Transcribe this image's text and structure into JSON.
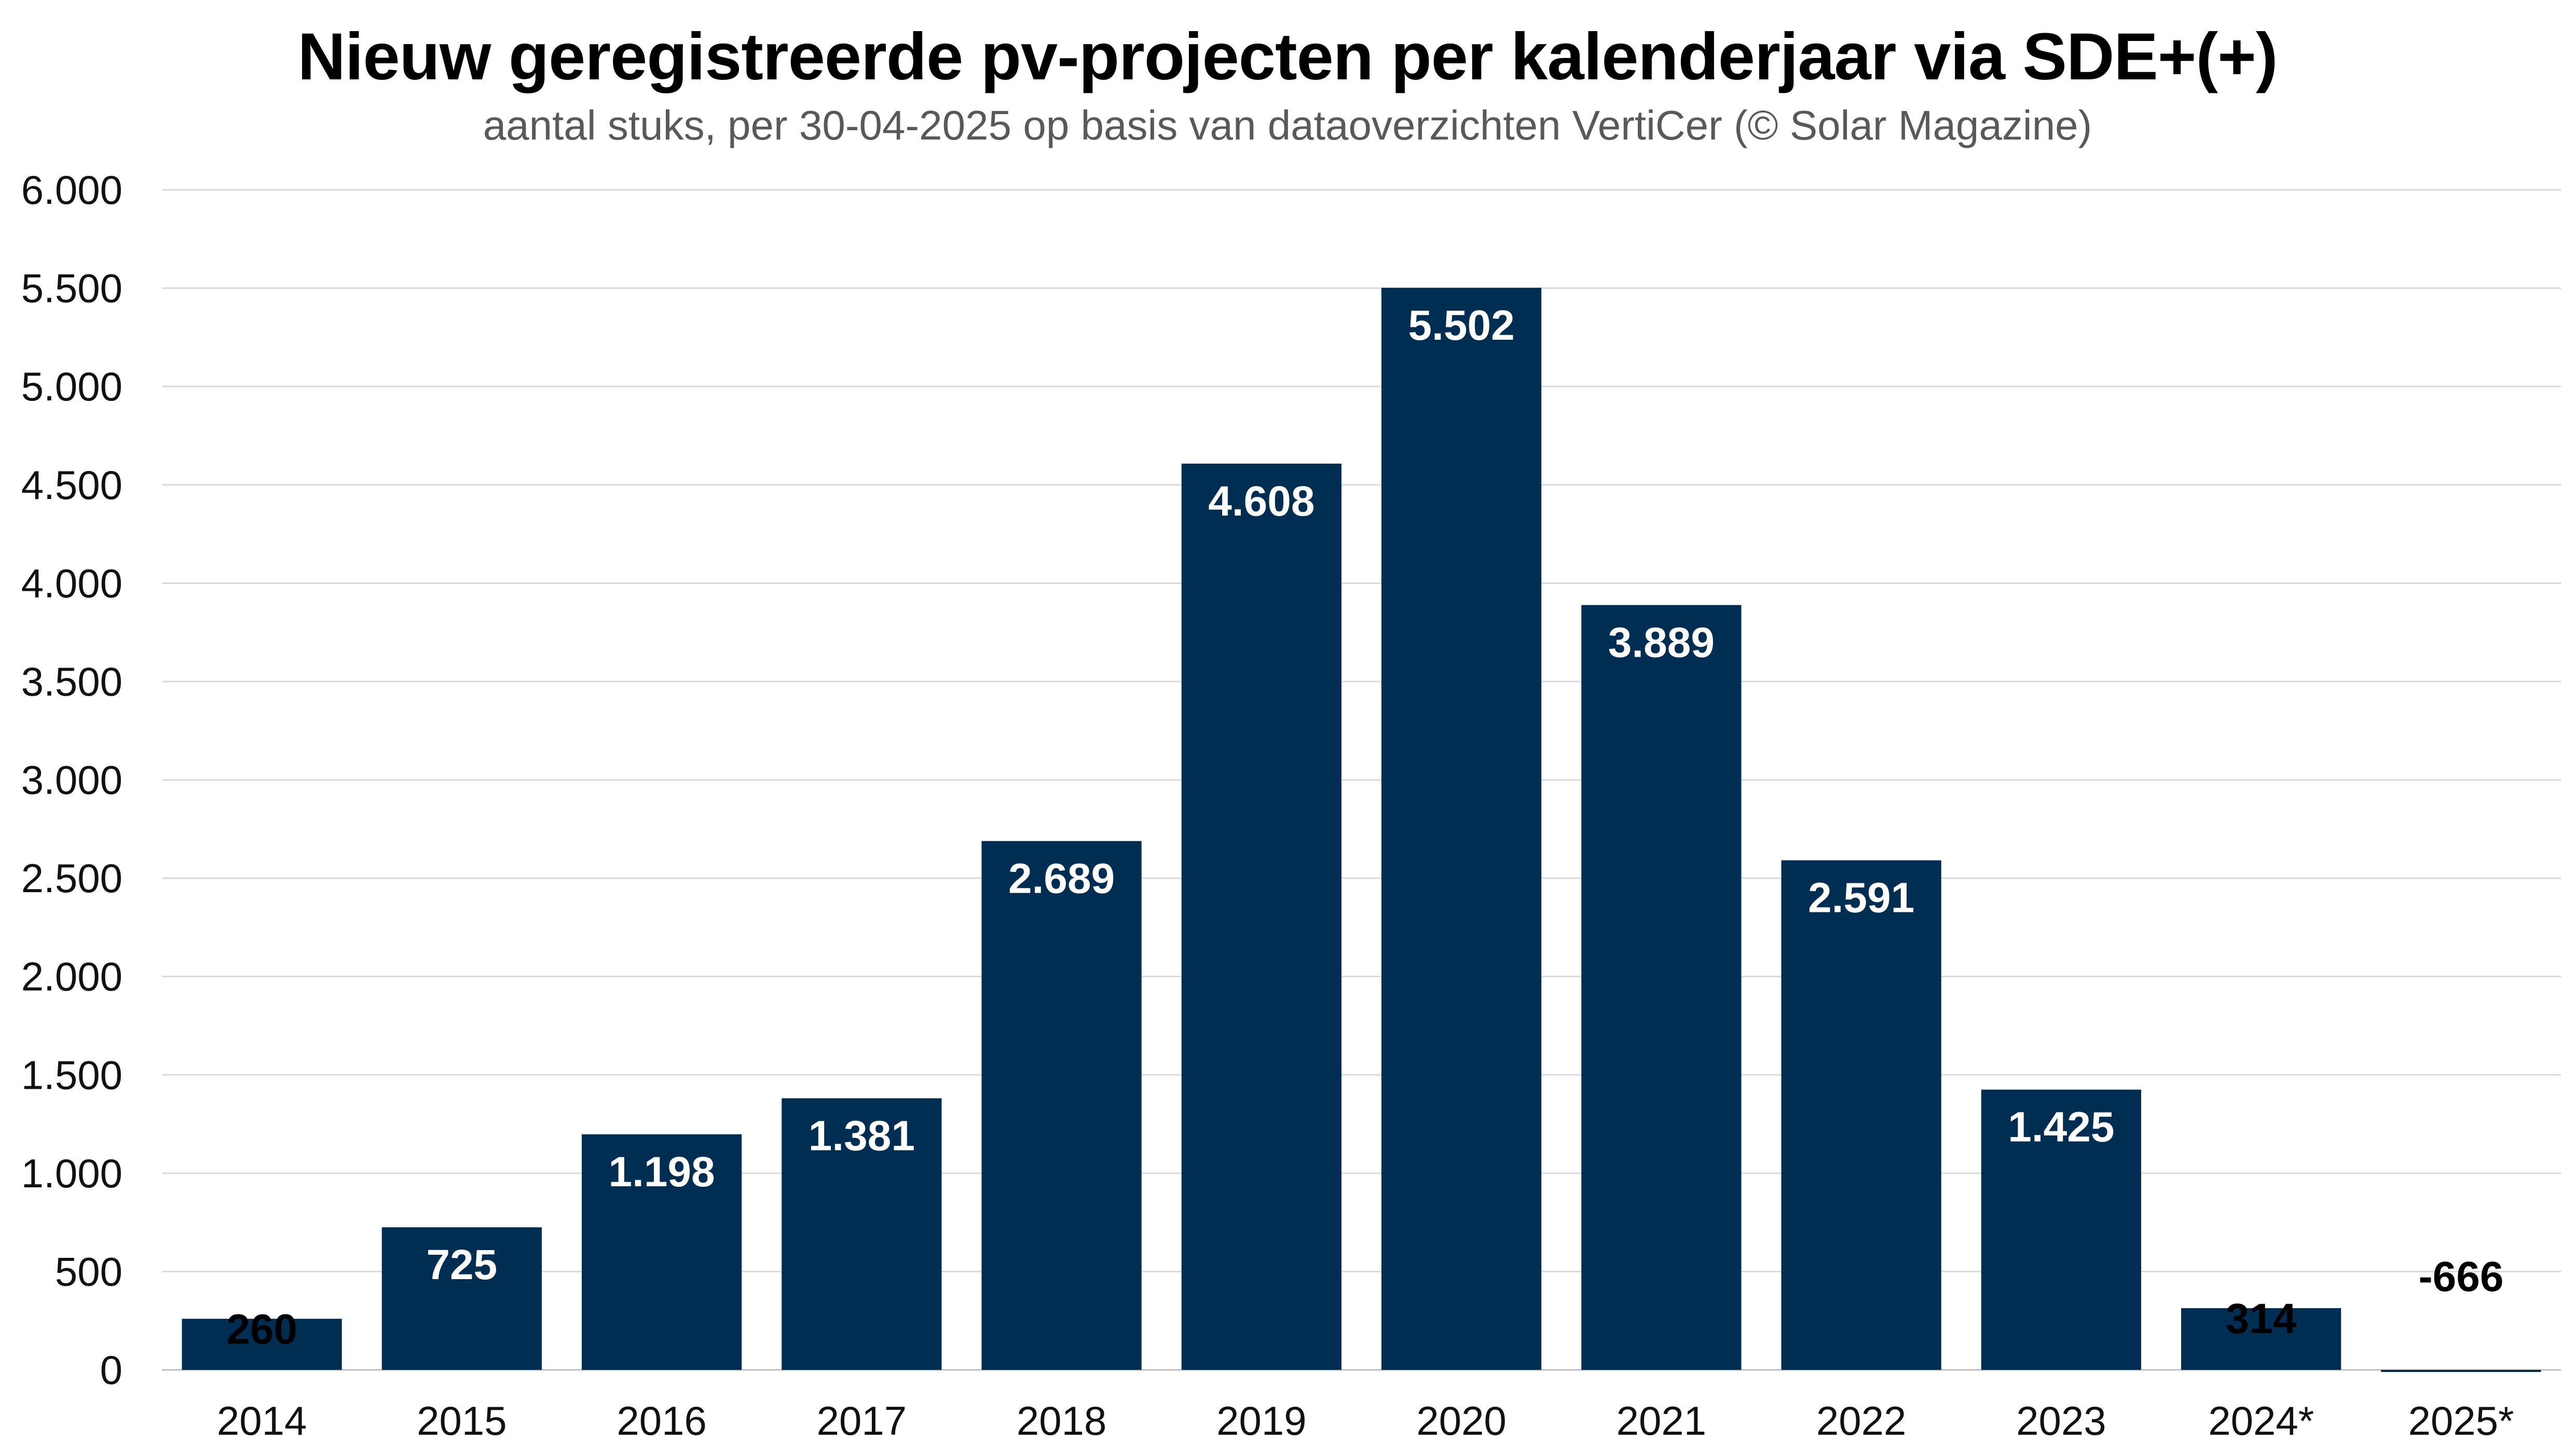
{
  "chart_data": {
    "type": "bar",
    "title": "Nieuw geregistreerde pv-projecten per kalenderjaar via SDE+(+)",
    "subtitle": "aantal stuks, per 30-04-2025 op basis van dataoverzichten VertiCer (© Solar Magazine)",
    "xlabel": "",
    "ylabel": "",
    "categories": [
      "2014",
      "2015",
      "2016",
      "2017",
      "2018",
      "2019",
      "2020",
      "2021",
      "2022",
      "2023",
      "2024*",
      "2025*"
    ],
    "values": [
      260,
      725,
      1198,
      1381,
      2689,
      4608,
      5502,
      3889,
      2591,
      1425,
      314,
      -666
    ],
    "data_labels": [
      "260",
      "725",
      "1.198",
      "1.381",
      "2.689",
      "4.608",
      "5.502",
      "3.889",
      "2.591",
      "1.425",
      "314",
      "-666"
    ],
    "ylim": [
      0,
      6000
    ],
    "yticks": [
      0,
      500,
      1000,
      1500,
      2000,
      2500,
      3000,
      3500,
      4000,
      4500,
      5000,
      5500,
      6000
    ],
    "ytick_labels": [
      "0",
      "500",
      "1.000",
      "1.500",
      "2.000",
      "2.500",
      "3.000",
      "3.500",
      "4.000",
      "4.500",
      "5.000",
      "5.500",
      "6.000"
    ],
    "grid": true,
    "legend": "none",
    "bar_color": "#002d52",
    "grid_color": "#d9d9d9"
  }
}
